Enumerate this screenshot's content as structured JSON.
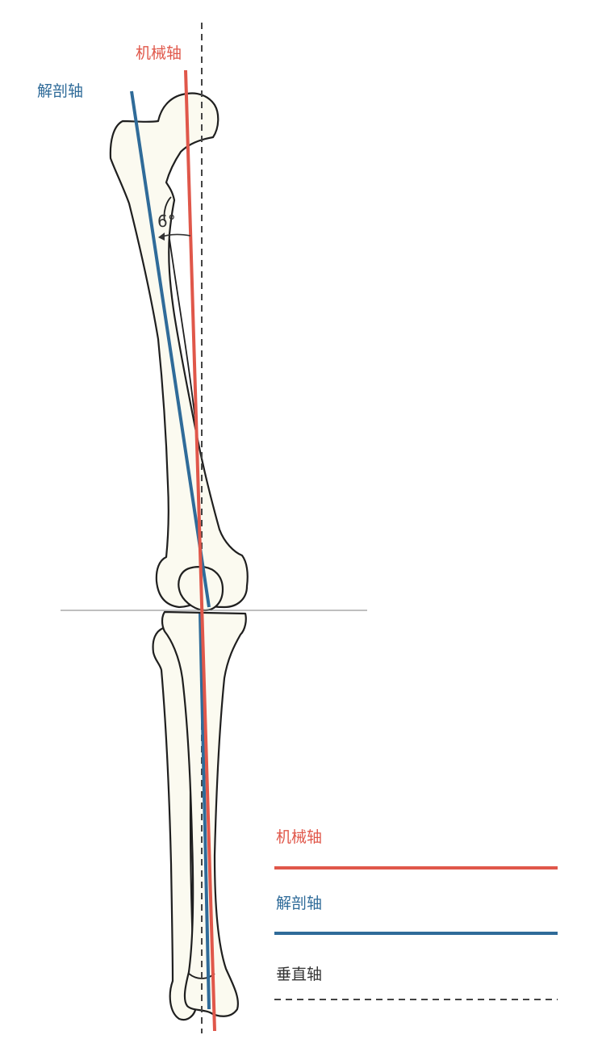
{
  "colors": {
    "mechanical": "#e0574a",
    "anatomical": "#2f6b99",
    "vertical": "#444444",
    "joint_line": "#999999",
    "bone_fill": "#fbfaf0",
    "bone_stroke": "#1f1f1f"
  },
  "labels": {
    "mechanical_top": "机械轴",
    "anatomical_top": "解剖轴",
    "angle": "6°"
  },
  "legend": [
    {
      "label": "机械轴",
      "line_style": "solid",
      "color": "#e0574a"
    },
    {
      "label": "解剖轴",
      "line_style": "solid",
      "color": "#2f6b99"
    },
    {
      "label": "垂直轴",
      "line_style": "dashed",
      "color": "#444444"
    }
  ]
}
